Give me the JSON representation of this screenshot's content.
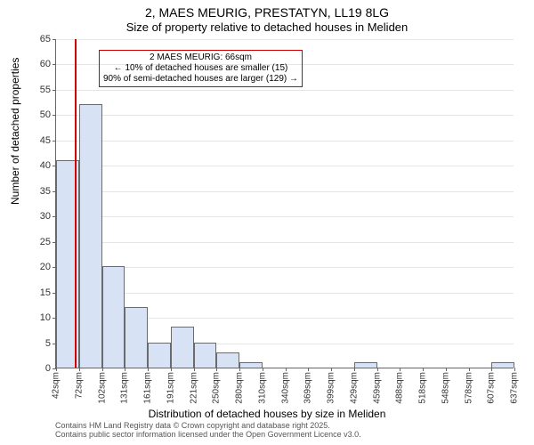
{
  "title_line1": "2, MAES MEURIG, PRESTATYN, LL19 8LG",
  "title_line2": "Size of property relative to detached houses in Meliden",
  "ylabel": "Number of detached properties",
  "xlabel": "Distribution of detached houses by size in Meliden",
  "footer_line1": "Contains HM Land Registry data © Crown copyright and database right 2025.",
  "footer_line2": "Contains public sector information licensed under the Open Government Licence v3.0.",
  "chart": {
    "type": "histogram",
    "ylim": [
      0,
      65
    ],
    "ytick_step": 5,
    "xticks": [
      "42sqm",
      "72sqm",
      "102sqm",
      "131sqm",
      "161sqm",
      "191sqm",
      "221sqm",
      "250sqm",
      "280sqm",
      "310sqm",
      "340sqm",
      "369sqm",
      "399sqm",
      "429sqm",
      "459sqm",
      "488sqm",
      "518sqm",
      "548sqm",
      "578sqm",
      "607sqm",
      "637sqm"
    ],
    "values": [
      41,
      52,
      20,
      12,
      5,
      8,
      5,
      3,
      1,
      0,
      0,
      0,
      0,
      1,
      0,
      0,
      0,
      0,
      0,
      1
    ],
    "bar_fill": "#d7e3f4",
    "bar_stroke": "#6b6b6b",
    "grid_color": "#e5e5e5",
    "background": "#ffffff",
    "axis_color": "#666666",
    "tick_font_size": 11,
    "refline_x_sqm": 66,
    "refline_color": "#cc0000",
    "annotation": {
      "border_color": "#cc0000",
      "line1": "2 MAES MEURIG: 66sqm",
      "line2": "← 10% of detached houses are smaller (15)",
      "line3": "90% of semi-detached houses are larger (129) →"
    }
  }
}
